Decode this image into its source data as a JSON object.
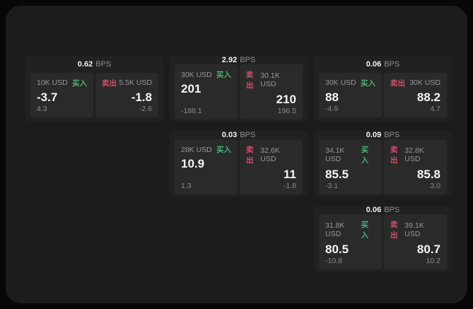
{
  "labels": {
    "bps_unit": "BPS",
    "buy": "买入",
    "sell": "卖出"
  },
  "colors": {
    "background": "#1c1c1d",
    "card": "#212122",
    "panel": "#2a2a2b",
    "buy_green": "#4caf72",
    "sell_red": "#cf4f6a"
  },
  "cards": [
    {
      "bps": "0.62",
      "buy": {
        "size": "10K USD",
        "price": "-3.7",
        "sub": "4.3"
      },
      "sell": {
        "size": "5.5K USD",
        "price": "-1.8",
        "sub": "-2.6"
      }
    },
    {
      "bps": "2.92",
      "buy": {
        "size": "30K USD",
        "price": "201",
        "sub": "-188.1"
      },
      "sell": {
        "size": "30.1K USD",
        "price": "210",
        "sub": "196.5"
      }
    },
    {
      "bps": "0.06",
      "buy": {
        "size": "30K USD",
        "price": "88",
        "sub": "-4.9"
      },
      "sell": {
        "size": "30K USD",
        "price": "88.2",
        "sub": "4.7"
      }
    },
    {
      "bps": "0.03",
      "buy": {
        "size": "28K USD",
        "price": "10.9",
        "sub": "1.3"
      },
      "sell": {
        "size": "32.6K USD",
        "price": "11",
        "sub": "-1.8"
      }
    },
    {
      "bps": "0.09",
      "buy": {
        "size": "34.1K USD",
        "price": "85.5",
        "sub": "-3.1"
      },
      "sell": {
        "size": "32.8K USD",
        "price": "85.8",
        "sub": "3.0"
      }
    },
    {
      "bps": "0.06",
      "buy": {
        "size": "31.8K USD",
        "price": "80.5",
        "sub": "-10.8"
      },
      "sell": {
        "size": "39.1K USD",
        "price": "80.7",
        "sub": "10.2"
      }
    }
  ]
}
